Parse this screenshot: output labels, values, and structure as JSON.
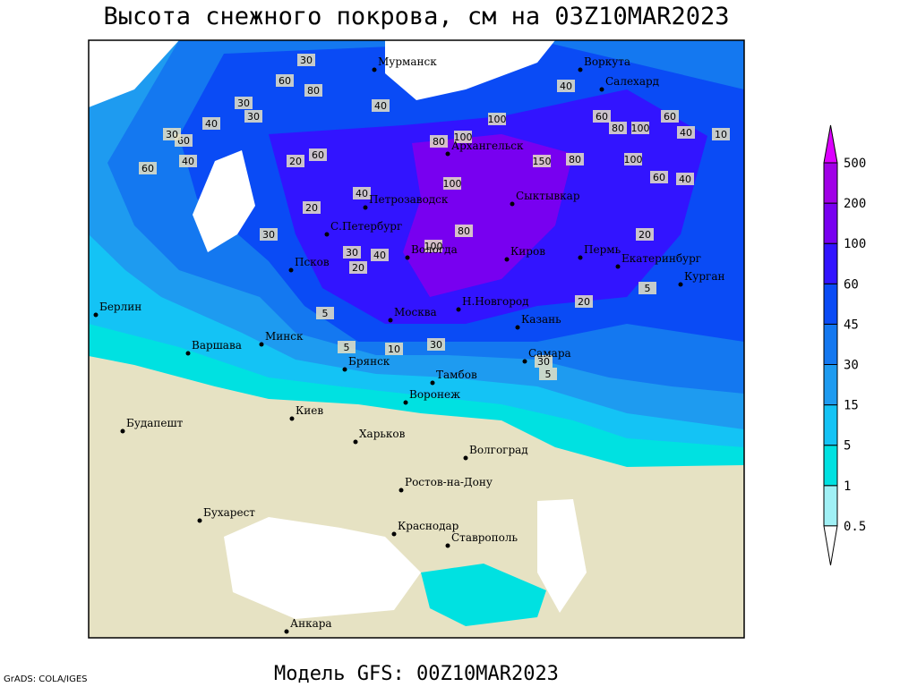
{
  "title": "Высота снежного покрова, см на 03Z10MAR2023",
  "footer": "Модель GFS: 00Z10MAR2023",
  "credit": "GrADS: COLA/IGES",
  "cities": [
    "Мурманск",
    "Архангельск",
    "Петрозаводск",
    "С.Петербург",
    "Вологда",
    "Псков",
    "Сыктывкар",
    "Воркута",
    "Салехард",
    "Киров",
    "Пермь",
    "Екатеринбург",
    "Курган",
    "Н.Новгород",
    "Казань",
    "Москва",
    "Минск",
    "Берлин",
    "Варшава",
    "Брянск",
    "Тамбов",
    "Самара",
    "Киев",
    "Воронеж",
    "Харьков",
    "Волгоград",
    "Будапешт",
    "Ростов-на-Дону",
    "Бухарест",
    "Краснодар",
    "Ставрополь",
    "Анкара"
  ],
  "contour_labels": [
    30,
    60,
    80,
    30,
    30,
    40,
    60,
    30,
    60,
    40,
    20,
    60,
    40,
    80,
    100,
    100,
    150,
    80,
    100,
    40,
    60,
    100,
    80,
    60,
    40,
    100,
    60,
    40,
    80,
    100,
    30,
    20,
    40,
    30,
    40,
    20,
    5,
    5,
    10,
    30,
    30,
    20,
    5,
    10,
    20,
    5
  ],
  "legend": {
    "levels": [
      0.5,
      1,
      5,
      15,
      30,
      45,
      60,
      100,
      200,
      500
    ],
    "colors": [
      "#ffffff",
      "#a0f0f5",
      "#00e1e1",
      "#14c3f5",
      "#1e9bf0",
      "#1478f0",
      "#0a4bf5",
      "#3214ff",
      "#7800f0",
      "#a000e6",
      "#dc00ff"
    ]
  },
  "land_color": "#e6e2c3"
}
